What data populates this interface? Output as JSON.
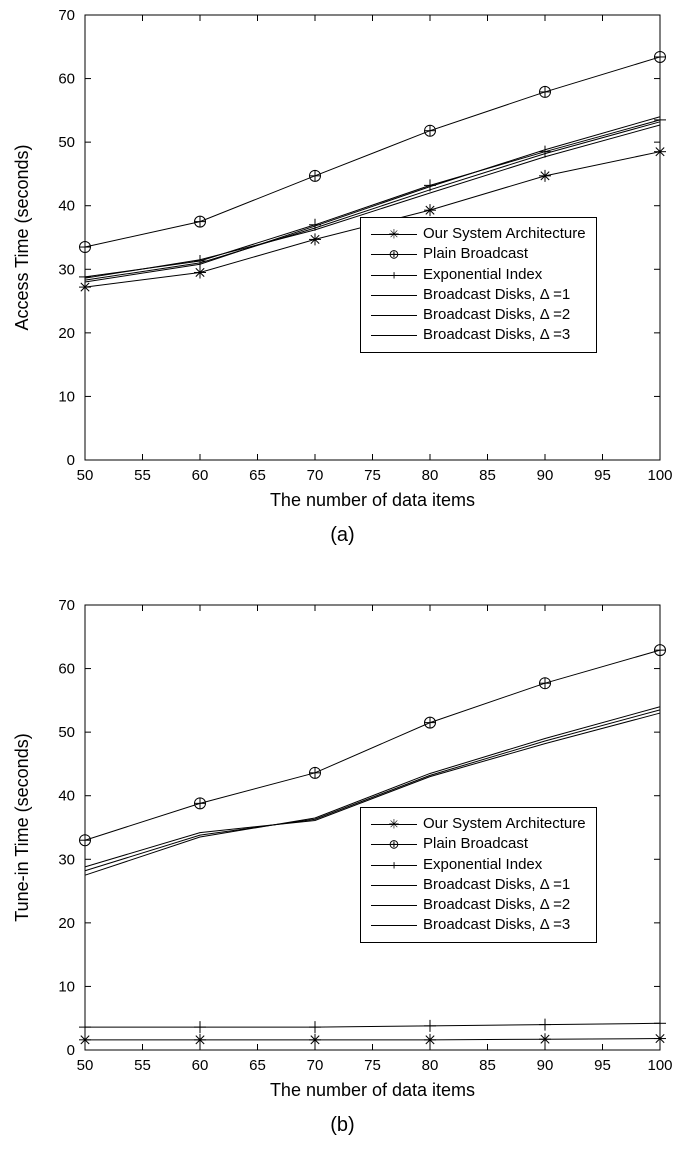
{
  "chart_a": {
    "type": "line",
    "xlabel": "The number of data items",
    "ylabel": "Access Time (seconds)",
    "caption": "(a)",
    "xlim": [
      50,
      100
    ],
    "ylim": [
      0,
      70
    ],
    "xtick_step": 5,
    "ytick_step": 10,
    "background_color": "#ffffff",
    "axis_color": "#000000",
    "line_color": "#000000",
    "label_fontsize": 18,
    "tick_fontsize": 15,
    "line_width": 1,
    "x": [
      50,
      60,
      70,
      80,
      90,
      100
    ],
    "series": [
      {
        "name": "Our System Architecture",
        "marker": "asterisk",
        "y": [
          27.2,
          29.5,
          34.7,
          39.3,
          44.7,
          48.5
        ]
      },
      {
        "name": "Plain Broadcast",
        "marker": "circle-plus",
        "y": [
          33.5,
          37.5,
          44.7,
          51.8,
          57.9,
          63.4
        ]
      },
      {
        "name": "Exponential Index",
        "marker": "plus",
        "y": [
          28.8,
          31.3,
          37.0,
          43.2,
          48.5,
          53.5
        ]
      },
      {
        "name": "Broadcast Disks, Δ =1",
        "marker": "none",
        "y": [
          28.0,
          30.8,
          36.8,
          43.0,
          48.8,
          54.0
        ]
      },
      {
        "name": "Broadcast Disks, Δ =2",
        "marker": "none",
        "y": [
          28.3,
          31.0,
          36.5,
          42.5,
          48.2,
          53.2
        ]
      },
      {
        "name": "Broadcast Disks, Δ =3",
        "marker": "none",
        "y": [
          28.6,
          31.5,
          36.2,
          42.0,
          47.7,
          52.7
        ]
      }
    ],
    "legend": {
      "items": [
        "Our System Architecture",
        "Plain Broadcast",
        "Exponential Index",
        "Broadcast Disks, Δ =1",
        "Broadcast Disks, Δ =2",
        "Broadcast Disks, Δ =3"
      ],
      "markers": [
        "asterisk",
        "circle-plus",
        "plus",
        "none",
        "none",
        "none"
      ]
    }
  },
  "chart_b": {
    "type": "line",
    "xlabel": "The number of data items",
    "ylabel": "Tune-in Time (seconds)",
    "caption": "(b)",
    "xlim": [
      50,
      100
    ],
    "ylim": [
      0,
      70
    ],
    "xtick_step": 5,
    "ytick_step": 10,
    "background_color": "#ffffff",
    "axis_color": "#000000",
    "line_color": "#000000",
    "label_fontsize": 18,
    "tick_fontsize": 15,
    "line_width": 1,
    "x": [
      50,
      60,
      70,
      80,
      90,
      100
    ],
    "series": [
      {
        "name": "Our System Architecture",
        "marker": "asterisk",
        "y": [
          1.6,
          1.6,
          1.6,
          1.6,
          1.7,
          1.8
        ]
      },
      {
        "name": "Plain Broadcast",
        "marker": "circle-plus",
        "y": [
          33.0,
          38.8,
          43.6,
          51.5,
          57.7,
          62.9
        ]
      },
      {
        "name": "Exponential Index",
        "marker": "plus",
        "y": [
          3.6,
          3.6,
          3.6,
          3.8,
          4.0,
          4.2
        ]
      },
      {
        "name": "Broadcast Disks, Δ =1",
        "marker": "none",
        "y": [
          27.5,
          33.5,
          36.5,
          43.5,
          49.0,
          54.0
        ]
      },
      {
        "name": "Broadcast Disks, Δ =2",
        "marker": "none",
        "y": [
          28.2,
          33.8,
          36.3,
          43.2,
          48.6,
          53.5
        ]
      },
      {
        "name": "Broadcast Disks, Δ =3",
        "marker": "none",
        "y": [
          28.8,
          34.2,
          36.1,
          43.0,
          48.2,
          53.0
        ]
      }
    ],
    "legend": {
      "items": [
        "Our System Architecture",
        "Plain Broadcast",
        "Exponential Index",
        "Broadcast Disks, Δ =1",
        "Broadcast Disks, Δ =2",
        "Broadcast Disks, Δ =3"
      ],
      "markers": [
        "asterisk",
        "circle-plus",
        "plus",
        "none",
        "none",
        "none"
      ]
    }
  }
}
